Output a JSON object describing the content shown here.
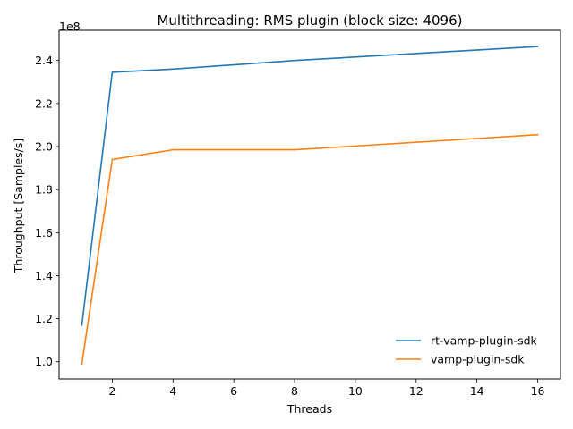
{
  "chart_data": {
    "type": "line",
    "title": "Multithreading: RMS plugin (block size: 4096)",
    "xlabel": "Threads",
    "ylabel": "Throughput [Samples/s]",
    "y_offset_label": "1e8",
    "y_scale_factor": 100000000,
    "xlim": [
      0.25,
      16.75
    ],
    "ylim": [
      0.92,
      2.54
    ],
    "xticks": [
      2,
      4,
      6,
      8,
      10,
      12,
      14,
      16
    ],
    "yticks": [
      1.0,
      1.2,
      1.4,
      1.6,
      1.8,
      2.0,
      2.2,
      2.4
    ],
    "ytick_labels": [
      "1.0",
      "1.2",
      "1.4",
      "1.6",
      "1.8",
      "2.0",
      "2.2",
      "2.4"
    ],
    "grid": false,
    "legend_position": "lower-right",
    "x": [
      1,
      2,
      4,
      8,
      16
    ],
    "series": [
      {
        "name": "rt-vamp-plugin-sdk",
        "color": "#1f77b4",
        "values": [
          1.17,
          2.345,
          2.36,
          2.4,
          2.465
        ]
      },
      {
        "name": "vamp-plugin-sdk",
        "color": "#ff7f0e",
        "values": [
          0.99,
          1.94,
          1.985,
          1.985,
          2.055
        ]
      }
    ]
  }
}
